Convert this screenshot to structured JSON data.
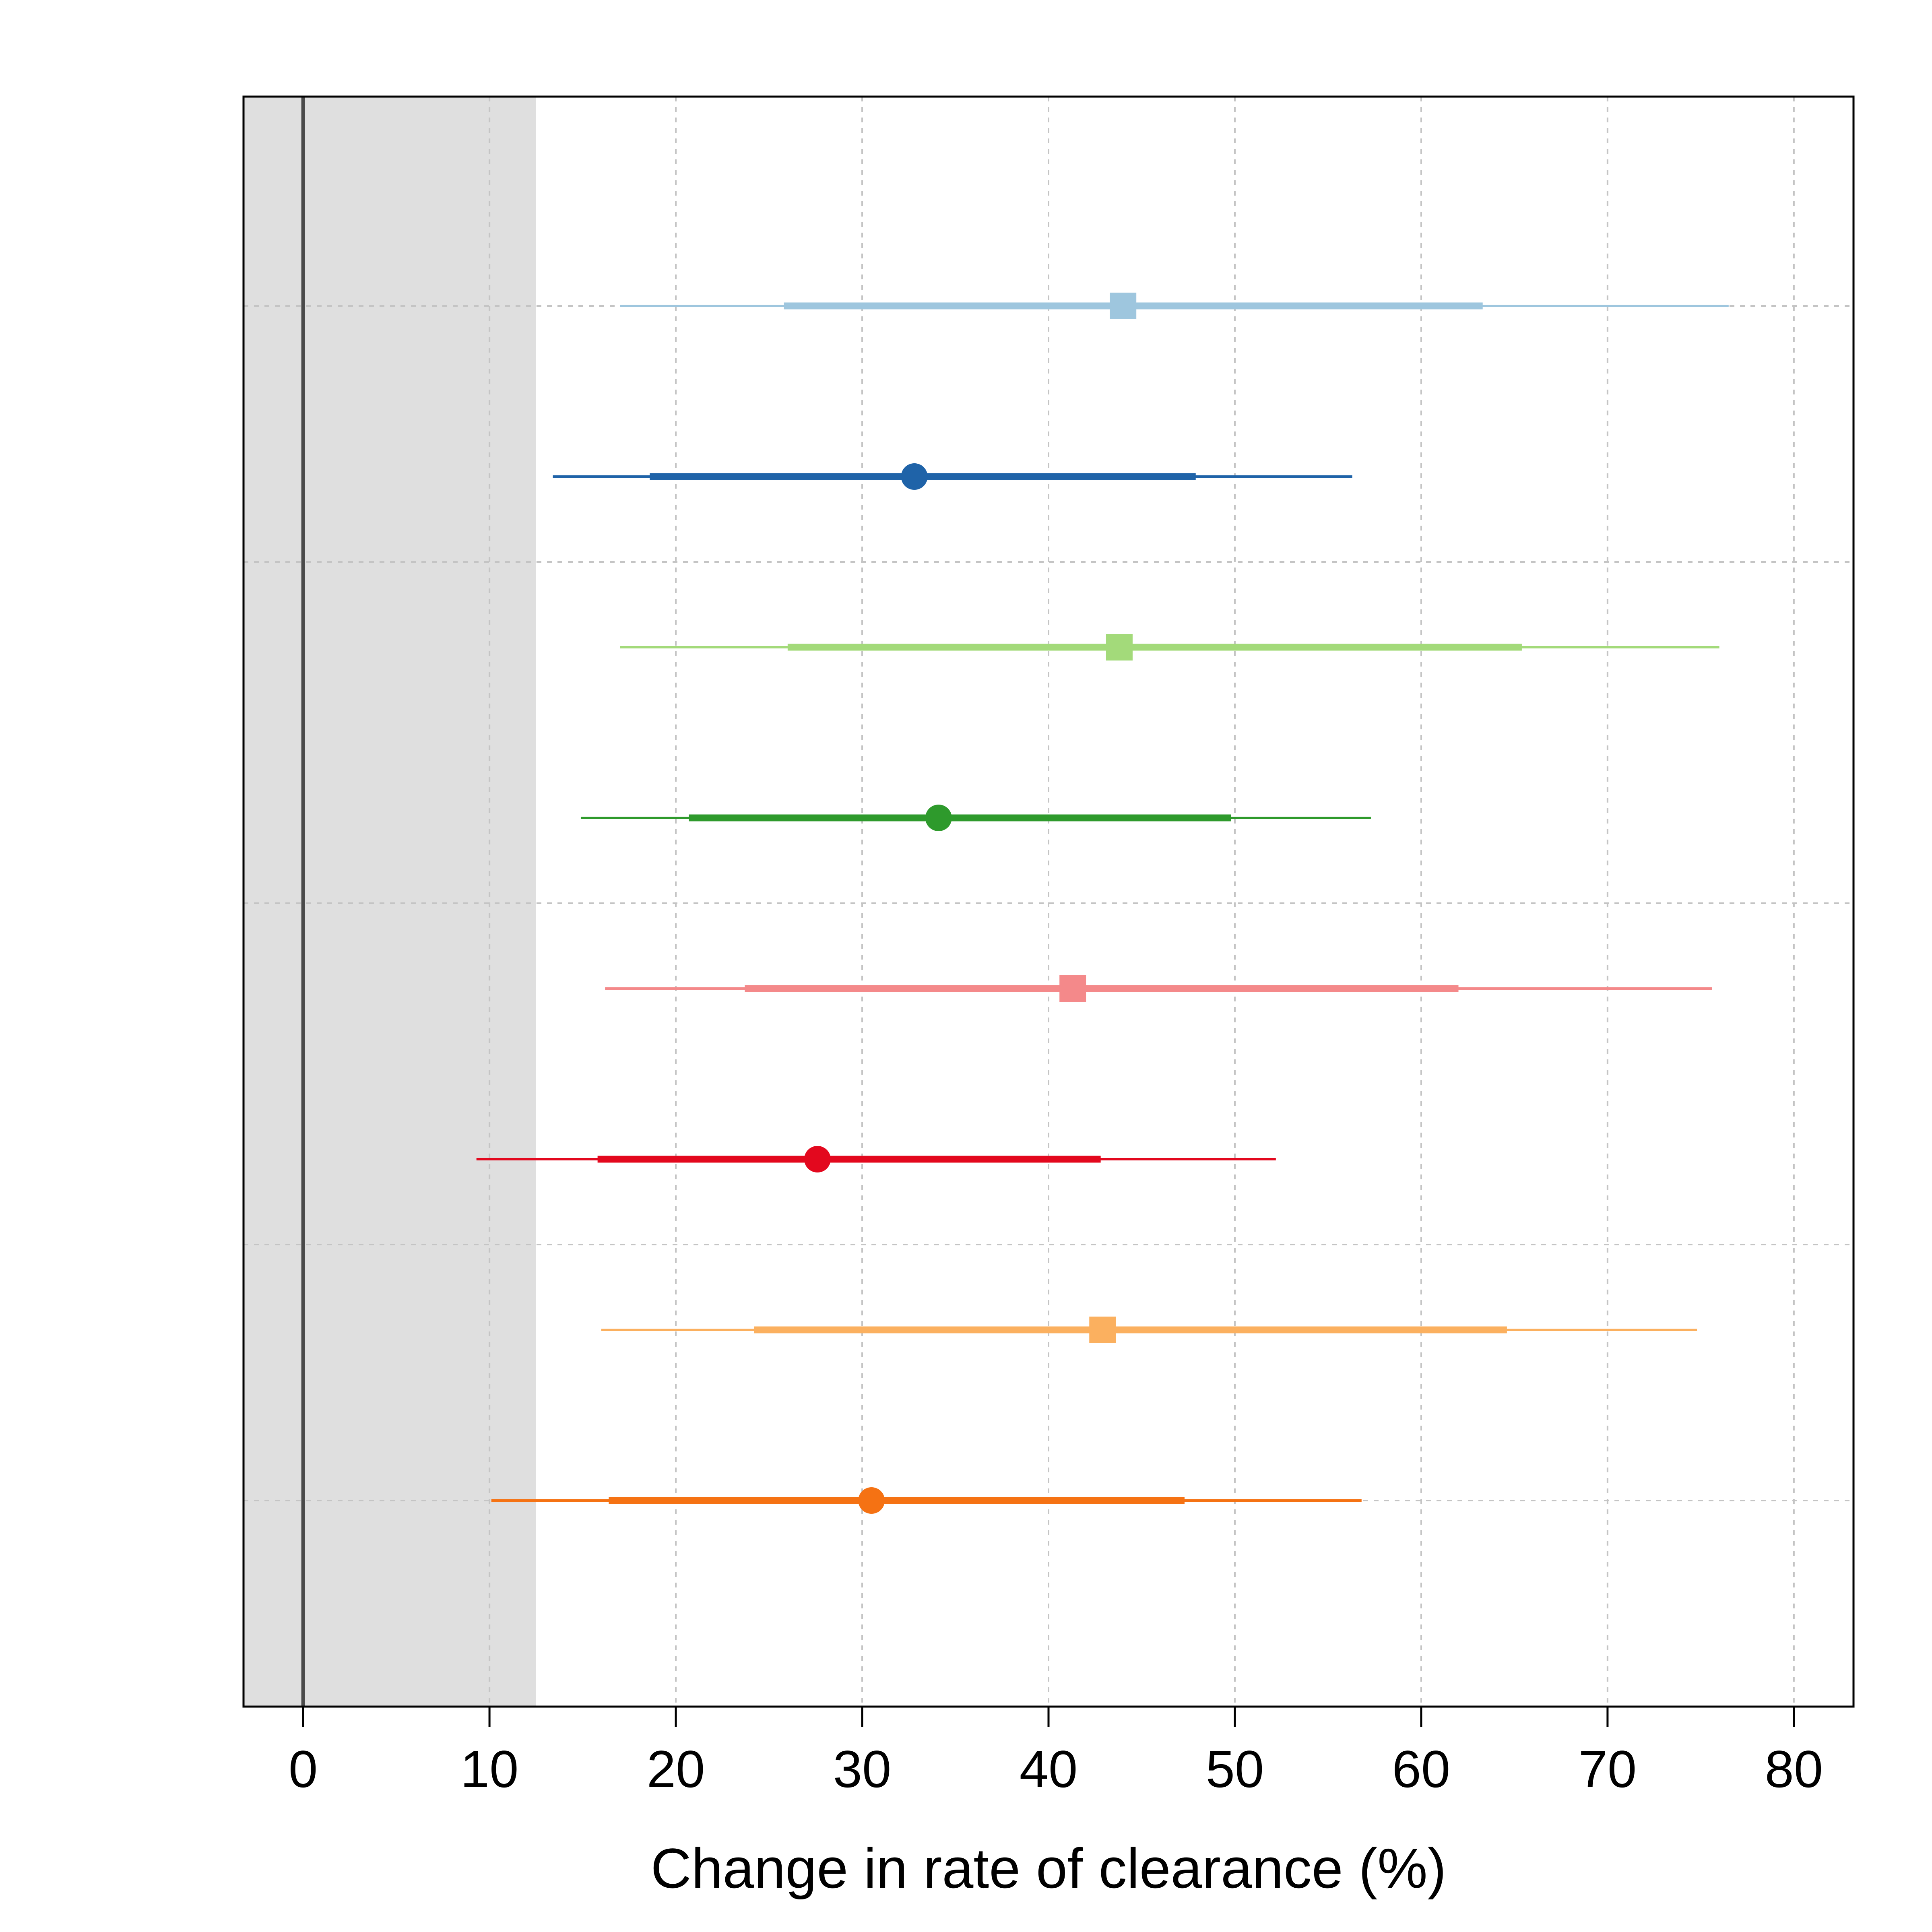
{
  "chart_data": {
    "type": "forest",
    "xlabel": "Change in rate of clearance (%)",
    "xlim": [
      -3.2,
      83.2
    ],
    "xticks": [
      0,
      10,
      20,
      30,
      40,
      50,
      60,
      70,
      80
    ],
    "reference_line": 0,
    "shaded_region": [
      -3.2,
      12.5
    ],
    "shaded_color": "#dfdfdf",
    "grid": true,
    "series": [
      {
        "marker": "square",
        "color": "#9ec6de",
        "estimate": 44.0,
        "inner": [
          25.8,
          63.3
        ],
        "outer": [
          17.0,
          76.5
        ]
      },
      {
        "marker": "circle",
        "color": "#1f63a8",
        "estimate": 32.8,
        "inner": [
          18.6,
          47.9
        ],
        "outer": [
          13.4,
          56.3
        ]
      },
      {
        "marker": "square",
        "color": "#a3da7a",
        "estimate": 43.8,
        "inner": [
          26.0,
          65.4
        ],
        "outer": [
          17.0,
          76.0
        ]
      },
      {
        "marker": "circle",
        "color": "#2e9a2c",
        "estimate": 34.1,
        "inner": [
          20.7,
          49.8
        ],
        "outer": [
          14.9,
          57.3
        ]
      },
      {
        "marker": "square",
        "color": "#f4898a",
        "estimate": 41.3,
        "inner": [
          23.7,
          62.0
        ],
        "outer": [
          16.2,
          75.6
        ]
      },
      {
        "marker": "circle",
        "color": "#e3081e",
        "estimate": 27.6,
        "inner": [
          15.8,
          42.8
        ],
        "outer": [
          9.3,
          52.2
        ]
      },
      {
        "marker": "square",
        "color": "#fbb05f",
        "estimate": 42.9,
        "inner": [
          24.2,
          64.6
        ],
        "outer": [
          16.0,
          74.8
        ]
      },
      {
        "marker": "circle",
        "color": "#f57213",
        "estimate": 30.5,
        "inner": [
          16.4,
          47.3
        ],
        "outer": [
          10.1,
          56.8
        ]
      }
    ]
  }
}
